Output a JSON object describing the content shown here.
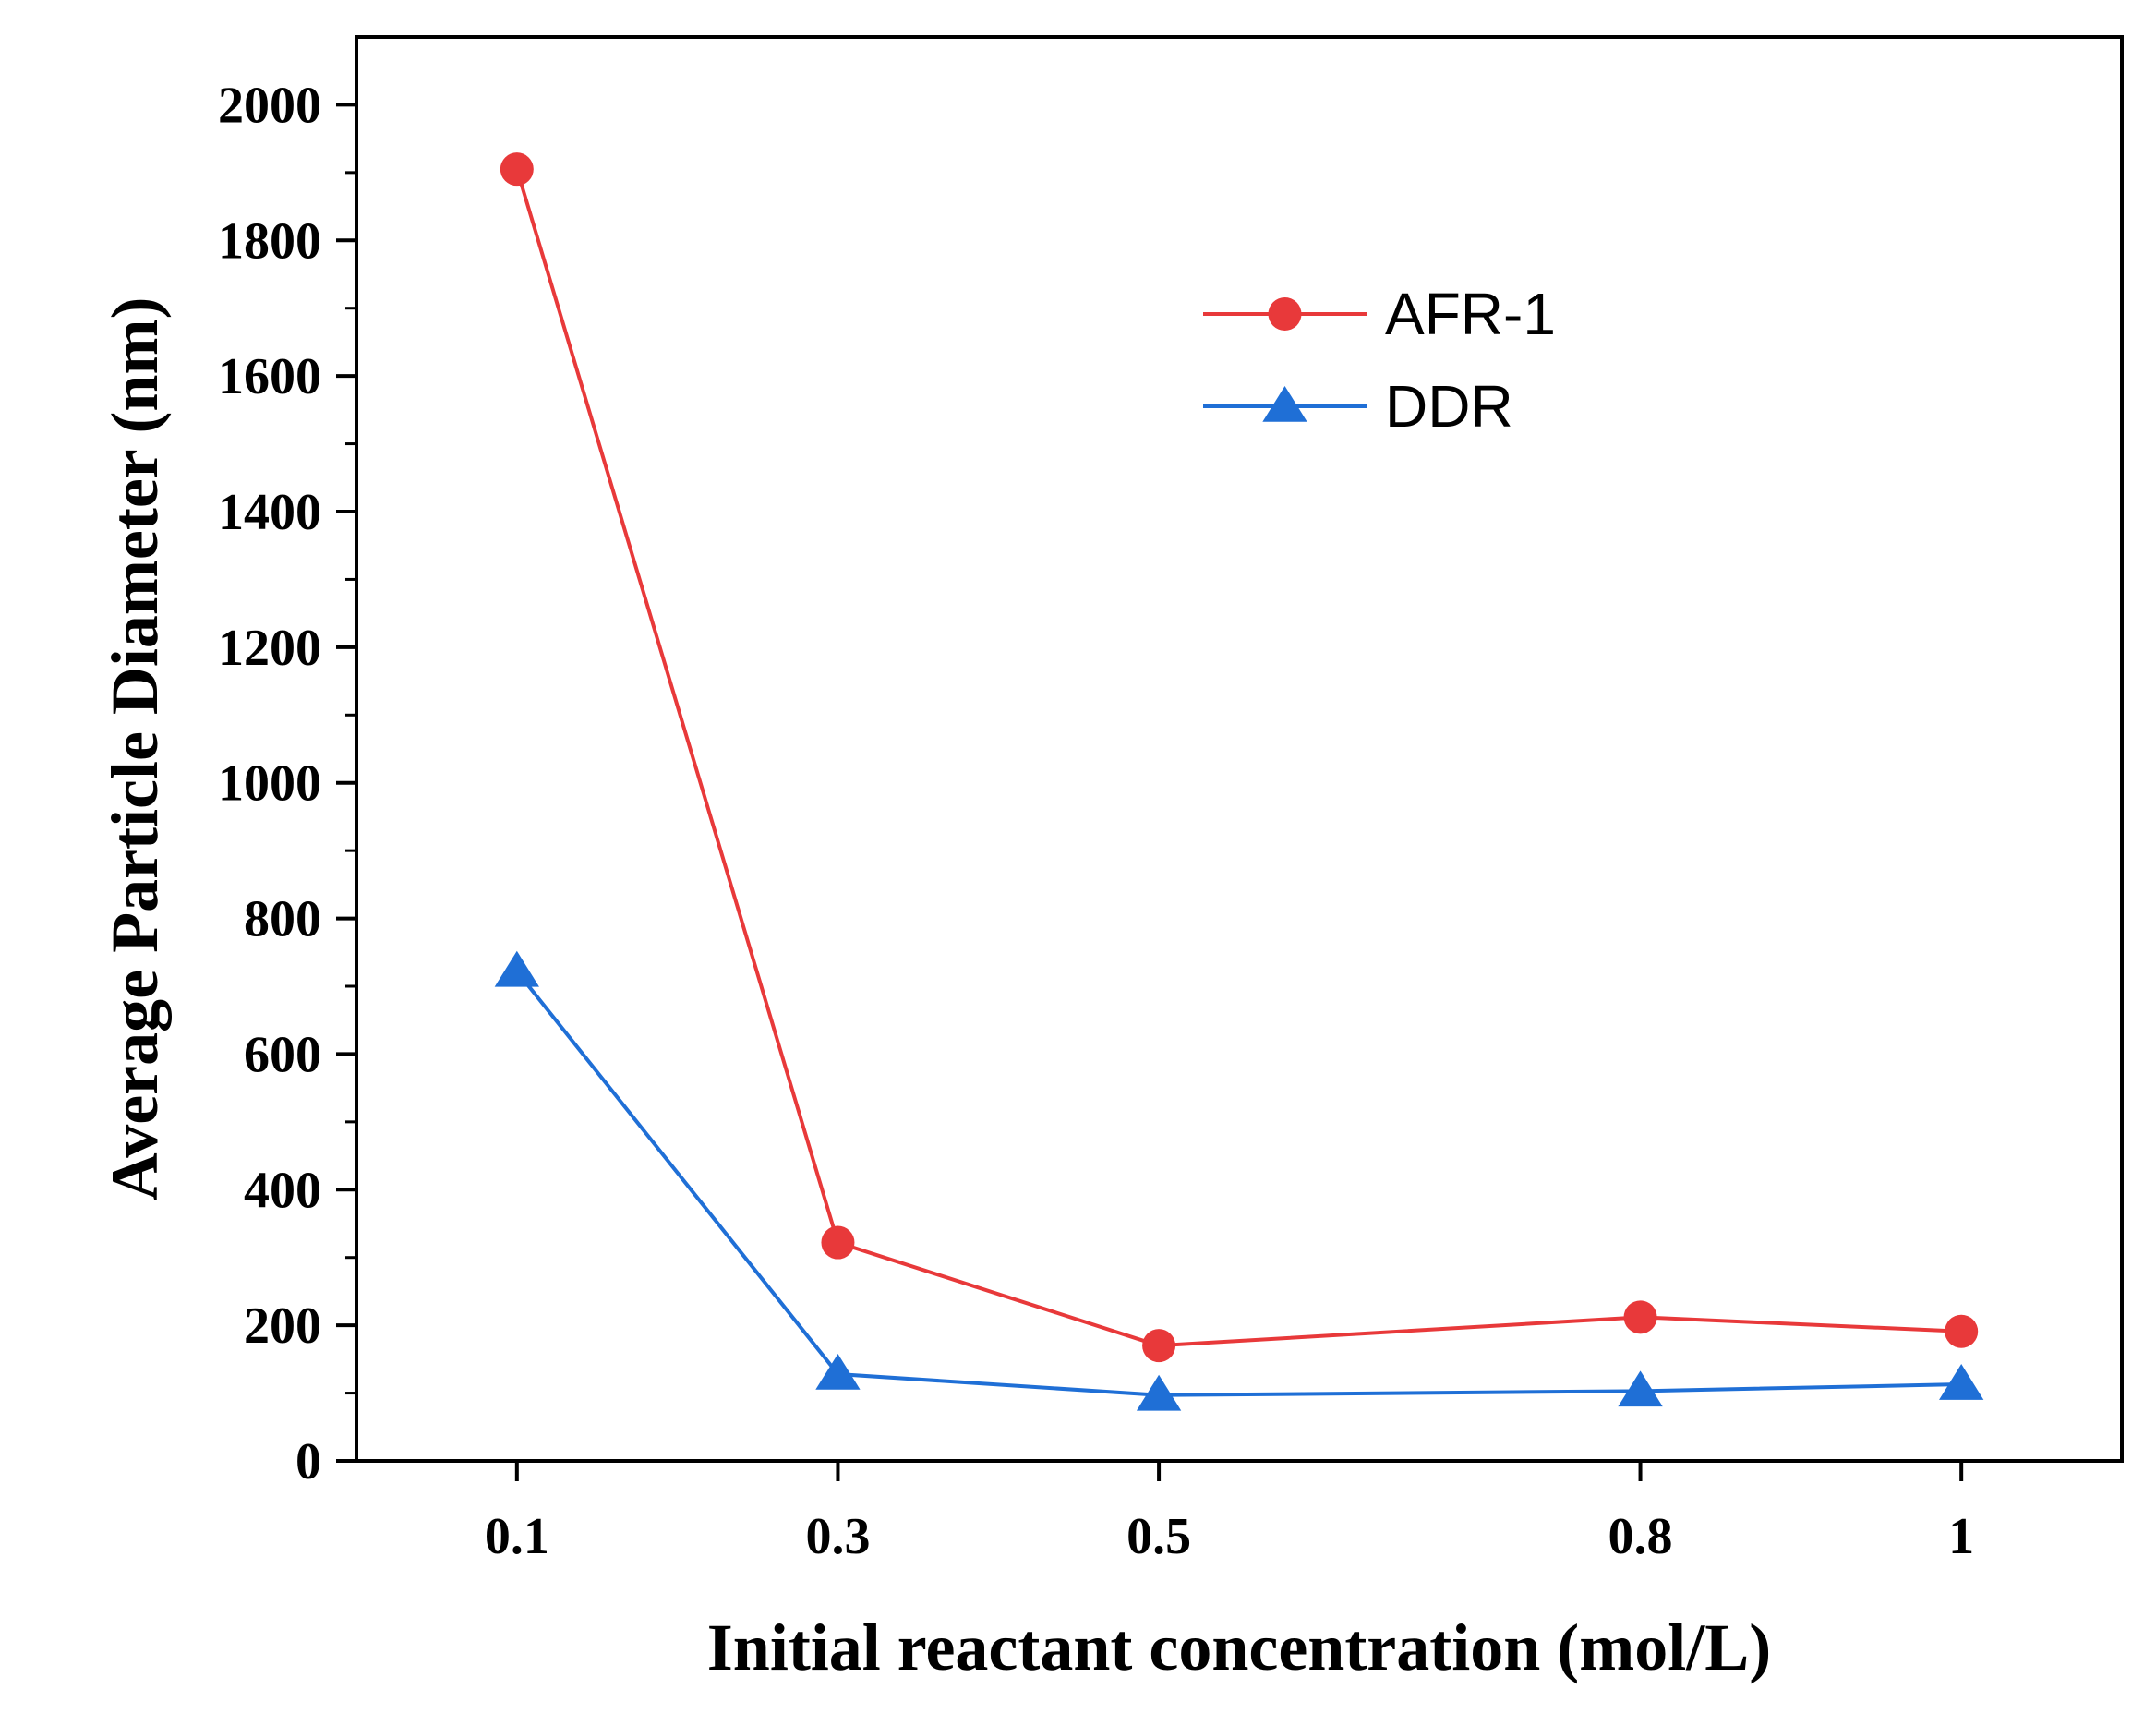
{
  "chart_data": {
    "type": "line",
    "title": "",
    "xlabel": "Initial reactant concentration (mol/L)",
    "ylabel": "Average Particle Diameter (nm)",
    "x": [
      0.1,
      0.3,
      0.5,
      0.8,
      1.0
    ],
    "x_tick_labels": [
      "0.1",
      "0.3",
      "0.5",
      "0.8",
      "1"
    ],
    "xlim": [
      0.0,
      1.1
    ],
    "ylim": [
      0,
      2100
    ],
    "y_ticks": [
      0,
      200,
      400,
      600,
      800,
      1000,
      1200,
      1400,
      1600,
      1800,
      2000
    ],
    "grid": false,
    "legend_position": "top-right",
    "series": [
      {
        "name": "AFR-1",
        "marker": "circle",
        "color": "#e8393a",
        "values": [
          1905,
          322,
          170,
          212,
          191
        ]
      },
      {
        "name": "DDR",
        "marker": "triangle",
        "color": "#1f6fd6",
        "values": [
          722,
          128,
          97,
          103,
          113
        ]
      }
    ]
  }
}
